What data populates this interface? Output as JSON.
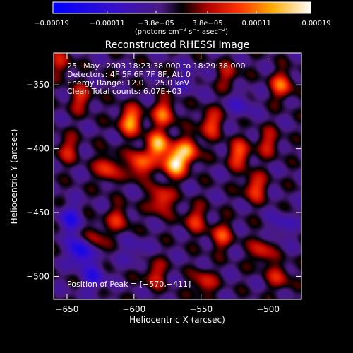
{
  "chart_data": {
    "type": "heatmap",
    "title": "Reconstructed RHESSI Image",
    "xlabel": "Heliocentric X (arcsec)",
    "ylabel": "Heliocentric Y (arcsec)",
    "xlim": [
      -660,
      -475
    ],
    "ylim": [
      -518,
      -325
    ],
    "x_ticks": [
      -650,
      -600,
      -550,
      -500
    ],
    "x_tick_labels": [
      "−650",
      "−600",
      "−550",
      "−500"
    ],
    "y_ticks": [
      -500,
      -450,
      -400,
      -350
    ],
    "y_tick_labels": [
      "−500",
      "−450",
      "−400",
      "−350"
    ],
    "annotations": [
      "25−May−2003 18:23:38.000 to 18:29:38.000",
      "Detectors: 4F 5F 6F 7F 8F, Att 0",
      "Energy Range: 12.0 − 25.0 keV",
      "Clean    Total counts: 6.07E+03"
    ],
    "peak_label": "Position of Peak = [−570,−411]",
    "peak": [
      -570,
      -411
    ],
    "colorbar": {
      "range": [
        -0.00019,
        0.00019
      ],
      "ticks": [
        -0.00019,
        -0.00011,
        -3.8e-05,
        3.8e-05,
        0.00011,
        0.00019
      ],
      "tick_labels": [
        "−0.00019",
        "−0.00011",
        "−3.8e−05",
        "3.8e−05",
        "0.00011",
        "0.00019"
      ],
      "unit_text": "(photons cm",
      "unit_exp1": "−2",
      "unit_mid": " s",
      "unit_exp2": "−1",
      "unit_mid2": " asec",
      "unit_exp3": "−2",
      "unit_end": ")"
    },
    "sources": [
      {
        "x": -570,
        "y": -411,
        "v": 1.0
      },
      {
        "x": -582,
        "y": -397,
        "v": 0.85
      },
      {
        "x": -560,
        "y": -401,
        "v": 0.7
      },
      {
        "x": -596,
        "y": -412,
        "v": 0.7
      },
      {
        "x": -603,
        "y": -378,
        "v": 0.8
      },
      {
        "x": -578,
        "y": -372,
        "v": 0.62
      },
      {
        "x": -543,
        "y": -380,
        "v": 0.55
      },
      {
        "x": -522,
        "y": -404,
        "v": 0.6
      },
      {
        "x": -510,
        "y": -430,
        "v": 0.55
      },
      {
        "x": -490,
        "y": -350,
        "v": 0.6
      },
      {
        "x": -620,
        "y": -415,
        "v": 0.55
      },
      {
        "x": -640,
        "y": -360,
        "v": 0.45
      },
      {
        "x": -650,
        "y": -400,
        "v": 0.4
      },
      {
        "x": -580,
        "y": -440,
        "v": 0.6
      },
      {
        "x": -555,
        "y": -455,
        "v": 0.45
      },
      {
        "x": -535,
        "y": -468,
        "v": 0.5
      },
      {
        "x": -612,
        "y": -455,
        "v": 0.42
      },
      {
        "x": -630,
        "y": -470,
        "v": 0.38
      },
      {
        "x": -585,
        "y": -498,
        "v": 0.42
      },
      {
        "x": -548,
        "y": -505,
        "v": 0.45
      },
      {
        "x": -505,
        "y": -480,
        "v": 0.45
      },
      {
        "x": -492,
        "y": -500,
        "v": 0.4
      },
      {
        "x": -500,
        "y": -395,
        "v": 0.4
      },
      {
        "x": -530,
        "y": -342,
        "v": 0.35
      },
      {
        "x": -655,
        "y": -333,
        "v": 0.35
      },
      {
        "x": -640,
        "y": -480,
        "v": -0.75
      },
      {
        "x": -648,
        "y": -455,
        "v": -0.5
      },
      {
        "x": -630,
        "y": -500,
        "v": -0.45
      },
      {
        "x": -490,
        "y": -460,
        "v": -0.3
      },
      {
        "x": -520,
        "y": -365,
        "v": -0.3
      },
      {
        "x": -600,
        "y": -480,
        "v": -0.25
      },
      {
        "x": -560,
        "y": -345,
        "v": -0.25
      }
    ]
  }
}
